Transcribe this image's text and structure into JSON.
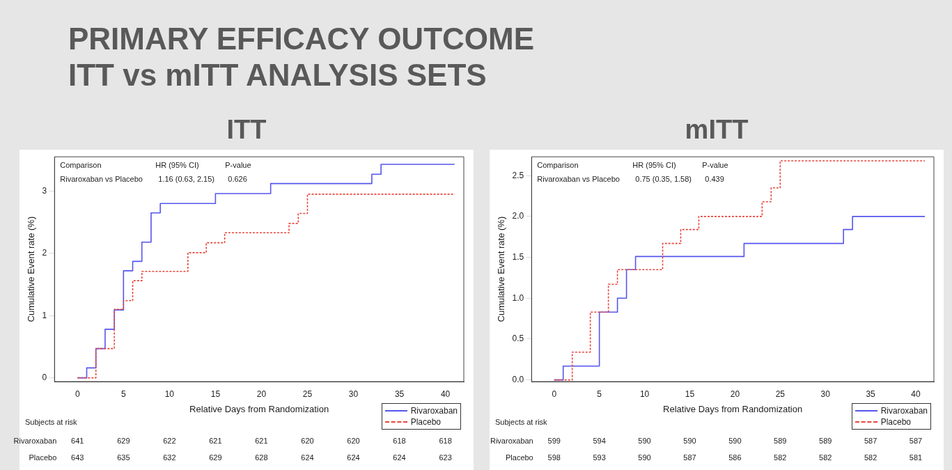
{
  "chart_data": [
    {
      "type": "step",
      "title": "ITT",
      "subtitle": "PRIMARY EFFICACY OUTCOME\nITT vs mITT ANALYSIS SETS",
      "xlabel": "Relative Days from Randomization",
      "ylabel": "Cumulative Event rate (%)",
      "series": [
        {
          "name": "Rivaroxaban",
          "color": "#5555ee",
          "line_style": "solid",
          "x": [
            0,
            1,
            2,
            3,
            4,
            5,
            6,
            7,
            8,
            9,
            15,
            21,
            32,
            33,
            41
          ],
          "values": [
            0,
            0.16,
            0.47,
            0.78,
            1.09,
            1.72,
            1.87,
            2.18,
            2.65,
            2.8,
            2.96,
            3.12,
            3.27,
            3.43,
            3.43
          ]
        },
        {
          "name": "Placebo",
          "color": "#e8463c",
          "line_style": "dashed",
          "x": [
            0,
            2,
            4,
            5,
            6,
            7,
            12,
            14,
            16,
            23,
            24,
            25,
            41
          ],
          "values": [
            0,
            0.47,
            1.1,
            1.24,
            1.56,
            1.71,
            2.01,
            2.17,
            2.33,
            2.48,
            2.64,
            2.95,
            2.95
          ]
        }
      ],
      "xlim": [
        -2.5,
        42
      ],
      "xticks": [
        0,
        5,
        10,
        15,
        20,
        25,
        30,
        35,
        40
      ],
      "ylim": [
        -0.06,
        3.55
      ],
      "yticks": [
        0,
        1,
        2,
        3
      ],
      "grid": false,
      "legend": "bottom right",
      "annotations": [
        "Comparison",
        "HR  (95% CI)",
        "P-value",
        "Rivaroxaban vs Placebo",
        "1.16 (0.63, 2.15)",
        "0.626",
        "Subjects at risk",
        "Rivaroxaban",
        "641",
        "629",
        "622",
        "621",
        "621",
        "620",
        "620",
        "618",
        "618",
        "Placebo",
        "643",
        "635",
        "632",
        "629",
        "628",
        "624",
        "624",
        "624",
        "623"
      ]
    },
    {
      "type": "step",
      "title": "mITT",
      "xlabel": "Relative Days from Randomization",
      "ylabel": "Cumulative Event rate (%)",
      "series": [
        {
          "name": "Rivaroxaban",
          "color": "#5555ee",
          "line_style": "solid",
          "x": [
            0,
            1,
            5,
            7,
            8,
            9,
            21,
            32,
            33,
            41
          ],
          "values": [
            0,
            0.17,
            0.83,
            1,
            1.35,
            1.51,
            1.67,
            1.84,
            2,
            2
          ]
        },
        {
          "name": "Placebo",
          "color": "#e8463c",
          "line_style": "dashed",
          "x": [
            0,
            2,
            4,
            6,
            7,
            12,
            14,
            16,
            23,
            24,
            25,
            41
          ],
          "values": [
            0,
            0.34,
            0.83,
            1.17,
            1.35,
            1.67,
            1.84,
            2,
            2.18,
            2.35,
            2.68,
            2.68
          ]
        }
      ],
      "xlim": [
        -2.5,
        42
      ],
      "xticks": [
        0,
        5,
        10,
        15,
        20,
        25,
        30,
        35,
        40
      ],
      "ylim": [
        -0.02,
        2.73
      ],
      "yticks": [
        {
          "value": 0,
          "label": "0.0"
        },
        {
          "value": 0.5,
          "label": "0.5"
        },
        {
          "value": 1,
          "label": "1.0"
        },
        {
          "value": 1.5,
          "label": "1.5"
        },
        {
          "value": 2,
          "label": "2.0"
        },
        {
          "value": 2.5,
          "label": "2.5"
        }
      ],
      "grid": false,
      "legend": "bottom right",
      "annotations": [
        "Comparison",
        "HR  (95% CI)",
        "P-value",
        "Rivaroxaban vs Placebo",
        "0.75 (0.35, 1.58)",
        "0.439",
        "Subjects at risk",
        "Rivaroxaban",
        "599",
        "594",
        "590",
        "590",
        "590",
        "589",
        "589",
        "587",
        "587",
        "Placebo",
        "598",
        "593",
        "590",
        "587",
        "586",
        "582",
        "582",
        "582",
        "581"
      ]
    }
  ]
}
